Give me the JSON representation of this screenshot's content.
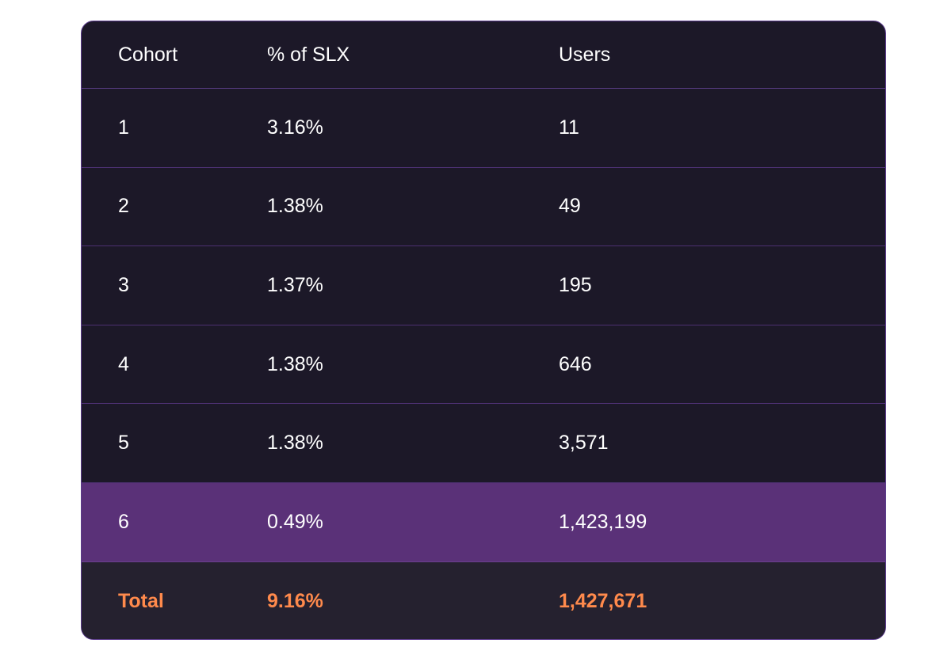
{
  "table": {
    "headers": {
      "cohort": "Cohort",
      "percent": "% of SLX",
      "users": "Users"
    },
    "rows": [
      {
        "cohort": "1",
        "percent": "3.16%",
        "users": "11"
      },
      {
        "cohort": "2",
        "percent": "1.38%",
        "users": "49"
      },
      {
        "cohort": "3",
        "percent": "1.37%",
        "users": "195"
      },
      {
        "cohort": "4",
        "percent": "1.38%",
        "users": "646"
      },
      {
        "cohort": "5",
        "percent": "1.38%",
        "users": "3,571"
      },
      {
        "cohort": "6",
        "percent": "0.49%",
        "users": "1,423,199",
        "highlighted": true
      }
    ],
    "total": {
      "label": "Total",
      "percent": "9.16%",
      "users": "1,427,671"
    }
  },
  "colors": {
    "background": "#1c1828",
    "border": "#5b3b8c",
    "highlight_row": "#5a3178",
    "total_row": "#25212f",
    "total_text": "#ff8a4c",
    "text": "#ffffff"
  }
}
